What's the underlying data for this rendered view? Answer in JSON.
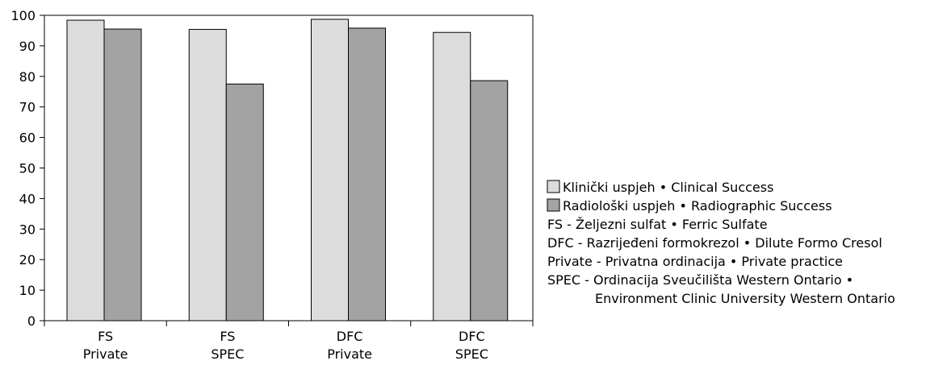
{
  "chart_data": {
    "type": "bar",
    "categories": [
      [
        "FS",
        "Private"
      ],
      [
        "FS",
        "SPEC"
      ],
      [
        "DFC",
        "Private"
      ],
      [
        "DFC",
        "SPEC"
      ]
    ],
    "series": [
      {
        "name": "Klinički uspjeh • Clinical Success",
        "values": [
          98.4,
          95.4,
          98.7,
          94.4
        ],
        "color": "#dcdcdc"
      },
      {
        "name": "Radiološki uspjeh • Radiographic Success",
        "values": [
          95.5,
          77.5,
          95.8,
          78.6
        ],
        "color": "#a3a3a3"
      }
    ],
    "ylim": [
      0,
      100
    ],
    "yticks": [
      0,
      10,
      20,
      30,
      40,
      50,
      60,
      70,
      80,
      90,
      100
    ],
    "grid": false,
    "legend": {
      "placement": "right",
      "notes": [
        "FS - Željezni sulfat • Ferric Sulfate",
        "DFC - Razrijeđeni formokrezol • Dilute Formo Cresol",
        "Private - Privatna ordinacija • Private practice",
        "SPEC - Ordinacija Sveučilišta Western Ontario •",
        "Environment Clinic University Western Ontario"
      ]
    }
  }
}
